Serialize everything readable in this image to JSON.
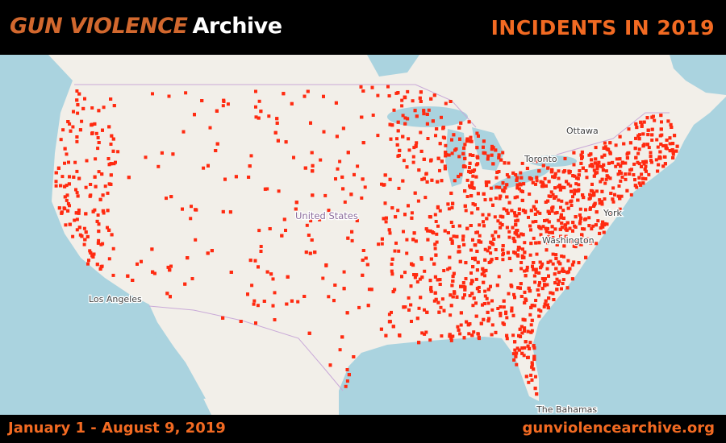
{
  "header": {
    "logo_main": "GUN VIOLENCE",
    "logo_sub": "Archive",
    "title": "INCIDENTS IN 2019"
  },
  "map": {
    "labels": {
      "ottawa": "Ottawa",
      "toronto": "Toronto",
      "united_states": "United States",
      "new_york": "York",
      "washington": "Washington",
      "los_angeles": "Los Angeles",
      "bahamas": "The Bahamas"
    },
    "colors": {
      "incident_marker": "#ff2a10",
      "water": "#aad3df",
      "land": "#f2efe9"
    }
  },
  "footer": {
    "date_range": "January 1 - August 9, 2019",
    "website": "gunviolencearchive.org"
  }
}
